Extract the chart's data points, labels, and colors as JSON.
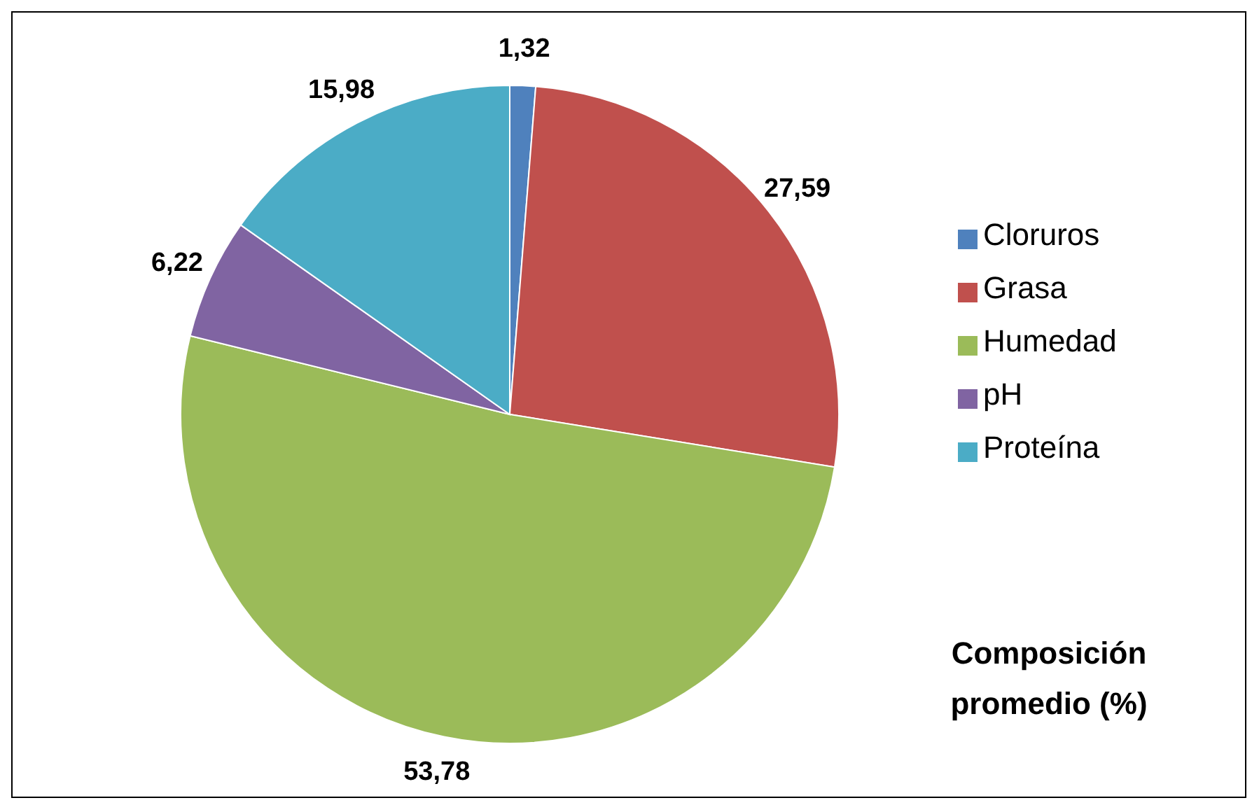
{
  "chart_data": {
    "type": "pie",
    "title": "Composición promedio (%)",
    "legend": "right",
    "categories": [
      "Cloruros",
      "Grasa",
      "Humedad",
      "pH",
      "Proteína"
    ],
    "values": [
      1.32,
      27.59,
      53.78,
      6.22,
      15.98
    ],
    "value_labels": [
      "1,32",
      "27,59",
      "53,78",
      "6,22",
      "15,98"
    ],
    "colors": [
      "#4f81bd",
      "#c0504d",
      "#9bbb59",
      "#8064a2",
      "#4bacc6"
    ]
  }
}
